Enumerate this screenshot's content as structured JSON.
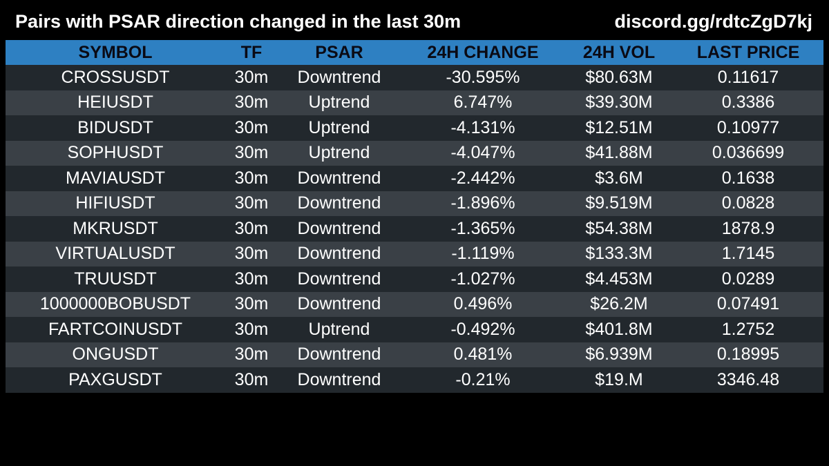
{
  "header": {
    "title": "Pairs with PSAR direction changed in the last 30m",
    "link": "discord.gg/rdtcZgD7kj"
  },
  "colors": {
    "background": "#000000",
    "header_row": "#2e80c2",
    "row_dark": "#22282d",
    "row_light": "#3a4046",
    "text": "#ffffff"
  },
  "table": {
    "columns": [
      "SYMBOL",
      "TF",
      "PSAR",
      "24H CHANGE",
      "24H VOL",
      "LAST PRICE"
    ],
    "rows": [
      [
        "CROSSUSDT",
        "30m",
        "Downtrend",
        "-30.595%",
        "$80.63M",
        "0.11617"
      ],
      [
        "HEIUSDT",
        "30m",
        "Uptrend",
        "6.747%",
        "$39.30M",
        "0.3386"
      ],
      [
        "BIDUSDT",
        "30m",
        "Uptrend",
        "-4.131%",
        "$12.51M",
        "0.10977"
      ],
      [
        "SOPHUSDT",
        "30m",
        "Uptrend",
        "-4.047%",
        "$41.88M",
        "0.036699"
      ],
      [
        "MAVIAUSDT",
        "30m",
        "Downtrend",
        "-2.442%",
        "$3.6M",
        "0.1638"
      ],
      [
        "HIFIUSDT",
        "30m",
        "Downtrend",
        "-1.896%",
        "$9.519M",
        "0.0828"
      ],
      [
        "MKRUSDT",
        "30m",
        "Downtrend",
        "-1.365%",
        "$54.38M",
        "1878.9"
      ],
      [
        "VIRTUALUSDT",
        "30m",
        "Downtrend",
        "-1.119%",
        "$133.3M",
        "1.7145"
      ],
      [
        "TRUUSDT",
        "30m",
        "Downtrend",
        "-1.027%",
        "$4.453M",
        "0.0289"
      ],
      [
        "1000000BOBUSDT",
        "30m",
        "Downtrend",
        "0.496%",
        "$26.2M",
        "0.07491"
      ],
      [
        "FARTCOINUSDT",
        "30m",
        "Uptrend",
        "-0.492%",
        "$401.8M",
        "1.2752"
      ],
      [
        "ONGUSDT",
        "30m",
        "Downtrend",
        "0.481%",
        "$6.939M",
        "0.18995"
      ],
      [
        "PAXGUSDT",
        "30m",
        "Downtrend",
        "-0.21%",
        "$19.M",
        "3346.48"
      ]
    ]
  }
}
